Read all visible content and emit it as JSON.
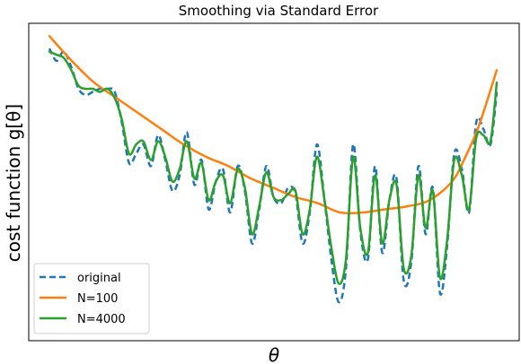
{
  "chart_data": {
    "type": "line",
    "title": "Smoothing via Standard Error",
    "xlabel": "θ",
    "ylabel": "cost function g[θ]",
    "xlim": [
      0,
      100
    ],
    "ylim": [
      0,
      100
    ],
    "xticks": [],
    "yticks": [],
    "grid": false,
    "legend_position": "lower-left",
    "series": [
      {
        "name": "original",
        "color": "#1f77b4",
        "style": "dashed",
        "x": [
          0,
          1.6,
          3.2,
          4.9,
          6.5,
          8.1,
          9.7,
          11.3,
          13,
          14.6,
          16.2,
          17.8,
          19.4,
          21,
          22.7,
          24.3,
          25.9,
          27.5,
          29.1,
          30.7,
          32.4,
          34,
          35.6,
          37.2,
          38.8,
          40.4,
          42.1,
          43.7,
          45.3,
          46.9,
          48.5,
          50.1,
          51.8,
          53.4,
          55,
          56.6,
          58.2,
          59.8,
          61.5,
          63.1,
          64.7,
          66.3,
          67.9,
          69.5,
          71.2,
          72.8,
          74.4,
          76,
          77.6,
          79.2,
          80.9,
          82.5,
          84.1,
          85.7,
          87.3,
          88.9,
          90.5,
          92.2,
          93.8,
          95.4,
          97,
          98.6,
          100
        ],
        "values": [
          93,
          89,
          92,
          87,
          80,
          78,
          79,
          80,
          80,
          79,
          69,
          56,
          59,
          62,
          55,
          65,
          57,
          47,
          52,
          66,
          49,
          57,
          41,
          50,
          54,
          40,
          55,
          47,
          30,
          41,
          55,
          45,
          43,
          48,
          46,
          30,
          40,
          62,
          44,
          24,
          11,
          22,
          62,
          34,
          25,
          55,
          27,
          44,
          51,
          18,
          24,
          55,
          33,
          48,
          14,
          29,
          59,
          54,
          40,
          69,
          67,
          62,
          79
        ]
      },
      {
        "name": "N=100",
        "color": "#ff7f0e",
        "style": "solid",
        "x": [
          0,
          5,
          10,
          15,
          20,
          25,
          30,
          35,
          40,
          45,
          50,
          55,
          60,
          65,
          70,
          75,
          80,
          85,
          90,
          93,
          96,
          100
        ],
        "values": [
          97,
          89,
          82,
          77,
          72,
          67,
          62,
          58,
          55,
          51,
          48,
          45,
          43,
          40,
          40,
          41,
          42,
          44,
          50,
          58,
          68,
          86
        ]
      },
      {
        "name": "N=4000",
        "color": "#2ca02c",
        "style": "solid",
        "x": [
          0,
          1.6,
          3.2,
          4.9,
          6.5,
          8.1,
          9.7,
          11.3,
          13,
          14.6,
          16.2,
          17.8,
          19.4,
          21,
          22.7,
          24.3,
          25.9,
          27.5,
          29.1,
          30.7,
          32.4,
          34,
          35.6,
          37.2,
          38.8,
          40.4,
          42.1,
          43.7,
          45.3,
          46.9,
          48.5,
          50.1,
          51.8,
          53.4,
          55,
          56.6,
          58.2,
          59.8,
          61.5,
          63.1,
          64.7,
          66.3,
          67.9,
          69.5,
          71.2,
          72.8,
          74.4,
          76,
          77.6,
          79.2,
          80.9,
          82.5,
          84.1,
          85.7,
          87.3,
          88.9,
          90.5,
          92.2,
          93.8,
          95.4,
          97,
          98.6,
          100
        ],
        "values": [
          92,
          91,
          90,
          86,
          81,
          80,
          80,
          79,
          80,
          77,
          70,
          59,
          62,
          63,
          57,
          63,
          58,
          50,
          54,
          63,
          51,
          56,
          44,
          50,
          52,
          43,
          54,
          48,
          33,
          42,
          53,
          45,
          44,
          46,
          47,
          33,
          41,
          58,
          44,
          28,
          17,
          25,
          58,
          35,
          27,
          52,
          30,
          44,
          49,
          22,
          26,
          52,
          35,
          47,
          19,
          31,
          57,
          52,
          41,
          64,
          65,
          63,
          82
        ]
      }
    ]
  }
}
